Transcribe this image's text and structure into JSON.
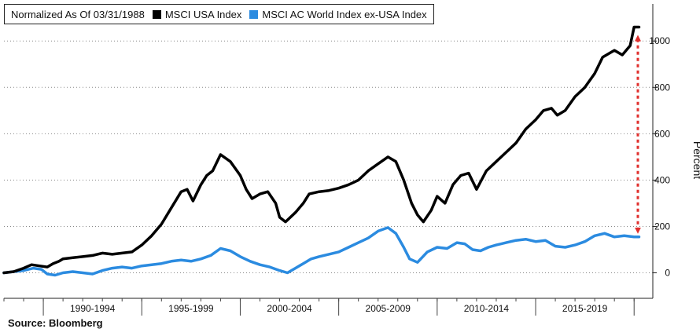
{
  "legend": {
    "note": "Normalized As Of 03/31/1988",
    "items": [
      "MSCI USA Index",
      "MSCI AC World Index ex-USA Index"
    ]
  },
  "source": "Source:  Bloomberg",
  "colors": {
    "usa": "#000000",
    "world_ex_usa": "#2b8be0",
    "arrow": "#e0302e",
    "grid": "#888888"
  },
  "chart_data": {
    "type": "line",
    "title": "",
    "xlabel": "",
    "ylabel": "Percent",
    "y_axis_side": "right",
    "ylim": [
      -110,
      1160
    ],
    "yticks": [
      0,
      200,
      400,
      600,
      800,
      1000
    ],
    "xlim": [
      1988.0,
      2020.95
    ],
    "x_tick_labels": [
      "1990-1994",
      "1995-1999",
      "2000-2004",
      "2005-2009",
      "2010-2014",
      "2015-2019"
    ],
    "x_group_bounds": [
      1990,
      1995,
      2000,
      2005,
      2010,
      2015,
      2020
    ],
    "grid": "dotted horizontal",
    "legend_position": "top-left",
    "annotation": "red dashed double-headed arrow between the two series at the latest date",
    "series": [
      {
        "name": "MSCI USA Index",
        "x": [
          1988.0,
          1988.5,
          1989.0,
          1989.4,
          1989.8,
          1990.2,
          1990.5,
          1990.8,
          1991.0,
          1991.5,
          1992.0,
          1992.5,
          1993.0,
          1993.5,
          1994.0,
          1994.5,
          1995.0,
          1995.5,
          1996.0,
          1996.5,
          1997.0,
          1997.3,
          1997.6,
          1998.0,
          1998.3,
          1998.6,
          1999.0,
          1999.5,
          2000.0,
          2000.3,
          2000.6,
          2001.0,
          2001.4,
          2001.8,
          2002.0,
          2002.3,
          2002.8,
          2003.2,
          2003.5,
          2004.0,
          2004.5,
          2005.0,
          2005.5,
          2006.0,
          2006.5,
          2007.0,
          2007.5,
          2007.9,
          2008.3,
          2008.7,
          2009.0,
          2009.3,
          2009.7,
          2010.0,
          2010.4,
          2010.8,
          2011.2,
          2011.6,
          2012.0,
          2012.5,
          2013.0,
          2013.5,
          2014.0,
          2014.5,
          2015.0,
          2015.4,
          2015.8,
          2016.1,
          2016.5,
          2017.0,
          2017.5,
          2018.0,
          2018.4,
          2018.8,
          2019.0,
          2019.4,
          2019.8,
          2020.0,
          2020.25
        ],
        "values": [
          0,
          5,
          20,
          35,
          30,
          25,
          40,
          50,
          60,
          65,
          70,
          75,
          85,
          80,
          85,
          90,
          120,
          160,
          210,
          280,
          350,
          360,
          310,
          380,
          420,
          440,
          510,
          480,
          420,
          360,
          320,
          340,
          350,
          300,
          240,
          220,
          260,
          300,
          340,
          350,
          355,
          365,
          380,
          400,
          440,
          470,
          500,
          480,
          400,
          300,
          250,
          220,
          270,
          330,
          300,
          380,
          420,
          430,
          360,
          440,
          480,
          520,
          560,
          620,
          660,
          700,
          710,
          680,
          700,
          760,
          800,
          860,
          930,
          950,
          960,
          940,
          980,
          1060,
          1060
        ]
      },
      {
        "name": "MSCI AC World Index ex-USA Index",
        "x": [
          1988.0,
          1988.5,
          1989.0,
          1989.5,
          1989.9,
          1990.2,
          1990.6,
          1991.0,
          1991.5,
          1992.0,
          1992.5,
          1993.0,
          1993.5,
          1994.0,
          1994.5,
          1995.0,
          1995.5,
          1996.0,
          1996.5,
          1997.0,
          1997.5,
          1998.0,
          1998.5,
          1999.0,
          1999.5,
          2000.0,
          2000.5,
          2001.0,
          2001.5,
          2002.0,
          2002.4,
          2002.8,
          2003.2,
          2003.6,
          2004.0,
          2004.5,
          2005.0,
          2005.5,
          2006.0,
          2006.5,
          2007.0,
          2007.5,
          2007.9,
          2008.3,
          2008.6,
          2009.0,
          2009.5,
          2010.0,
          2010.5,
          2011.0,
          2011.4,
          2011.8,
          2012.2,
          2012.6,
          2013.0,
          2013.5,
          2014.0,
          2014.5,
          2015.0,
          2015.5,
          2016.0,
          2016.5,
          2017.0,
          2017.5,
          2018.0,
          2018.5,
          2019.0,
          2019.5,
          2020.0,
          2020.25
        ],
        "values": [
          0,
          5,
          10,
          20,
          15,
          -5,
          -10,
          0,
          5,
          0,
          -5,
          10,
          20,
          25,
          20,
          30,
          35,
          40,
          50,
          55,
          50,
          60,
          75,
          105,
          95,
          70,
          50,
          35,
          25,
          10,
          0,
          20,
          40,
          60,
          70,
          80,
          90,
          110,
          130,
          150,
          180,
          195,
          170,
          110,
          60,
          45,
          90,
          110,
          105,
          130,
          125,
          100,
          95,
          110,
          120,
          130,
          140,
          145,
          135,
          140,
          115,
          110,
          120,
          135,
          160,
          170,
          155,
          160,
          155,
          155
        ]
      }
    ]
  }
}
